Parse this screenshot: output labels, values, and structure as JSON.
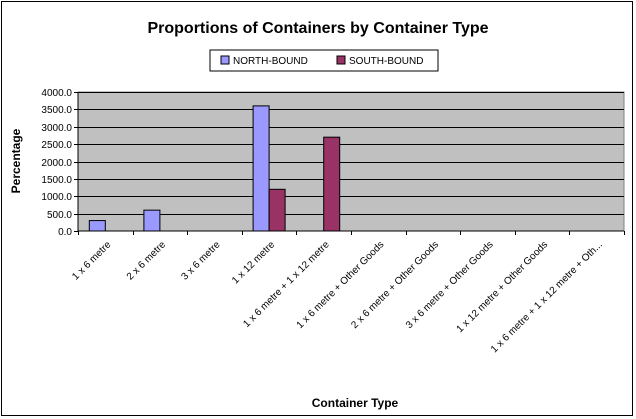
{
  "chart_data": {
    "type": "bar",
    "title": "Proportions of Containers by Container Type",
    "xlabel": "Container Type",
    "ylabel": "Percentage",
    "ylim": [
      0,
      4000
    ],
    "yticks": [
      "0.0",
      "500.0",
      "1000.0",
      "1500.0",
      "2000.0",
      "2500.0",
      "3000.0",
      "3500.0",
      "4000.0"
    ],
    "categories": [
      "1 x 6 metre",
      "2 x 6 metre",
      "3 x 6 metre",
      "1 x 12 metre",
      "1 x 6 metre + 1 x 12 metre",
      "1 x 6 metre + Other Goods",
      "2 x 6 metre + Other Goods",
      "3 x 6 metre + Other Goods",
      "1 x 12 metre + Other Goods",
      "1 x 6 metre + 1 x 12 metre + Oth..."
    ],
    "series": [
      {
        "name": "NORTH-BOUND",
        "color": "#9999ff",
        "values": [
          300,
          600,
          0,
          3600,
          0,
          0,
          0,
          0,
          0,
          0
        ]
      },
      {
        "name": "SOUTH-BOUND",
        "color": "#993366",
        "values": [
          0,
          0,
          0,
          1200,
          2700,
          0,
          0,
          0,
          0,
          0
        ]
      }
    ],
    "plot_background": "#c0c0c0",
    "grid": true,
    "legend_position": "top"
  }
}
